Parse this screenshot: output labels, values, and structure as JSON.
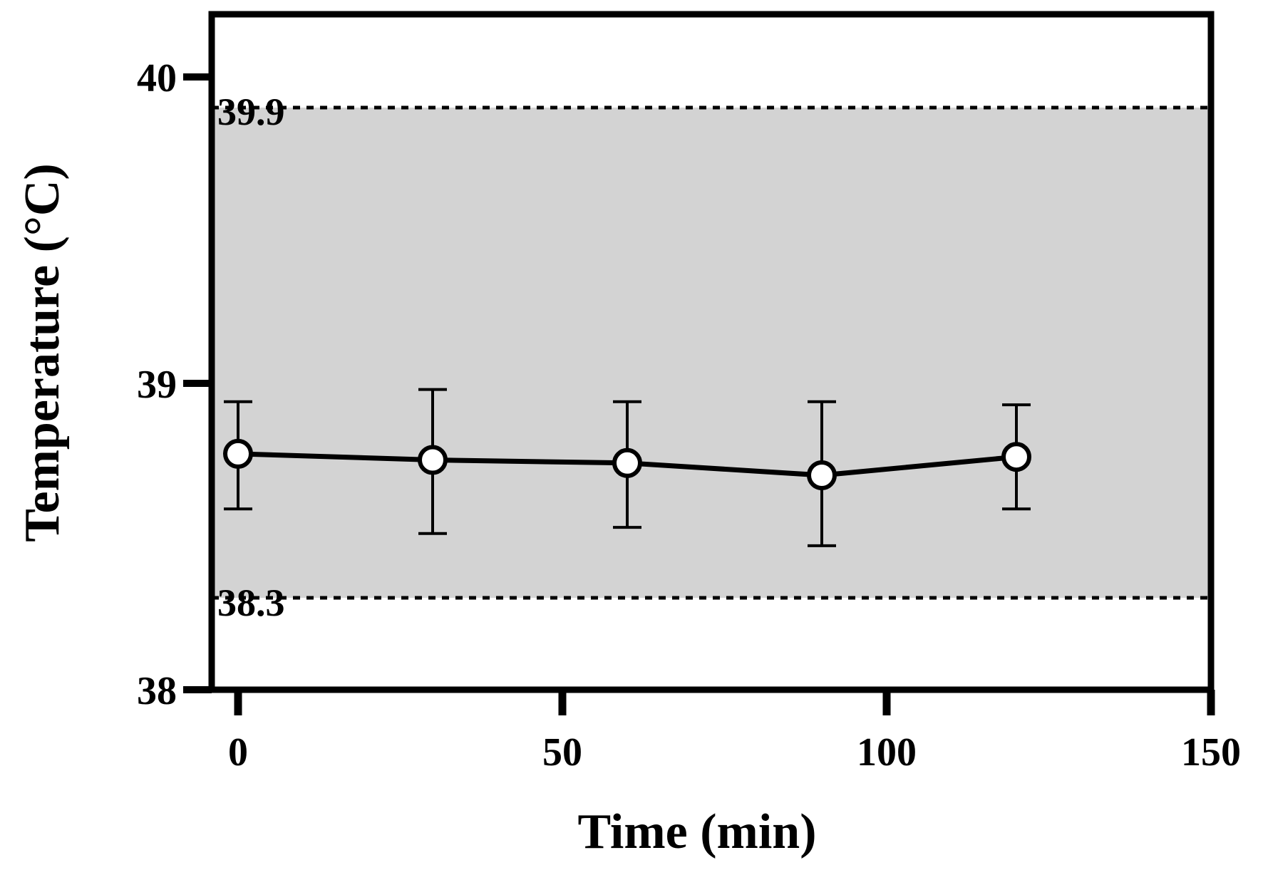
{
  "chart_data": {
    "type": "line",
    "title": "",
    "xlabel": "Time (min)",
    "ylabel": "Temperature (°C)",
    "xlim": [
      -8,
      150
    ],
    "ylim": [
      38,
      40.22
    ],
    "xticks": [
      0,
      50,
      100,
      150
    ],
    "xtick_labels": [
      "0",
      "50",
      "100",
      "150"
    ],
    "yticks": [
      38,
      39,
      40
    ],
    "ytick_labels": [
      "38",
      "39",
      "40"
    ],
    "grid": false,
    "legend": "none",
    "series": [
      {
        "x": [
          0,
          30,
          60,
          90,
          120
        ],
        "y": [
          38.77,
          38.75,
          38.74,
          38.7,
          38.76
        ],
        "error_low": [
          38.59,
          38.51,
          38.53,
          38.47,
          38.59
        ],
        "error_high": [
          38.94,
          38.98,
          38.94,
          38.94,
          38.93
        ],
        "marker": "open-circle",
        "color": "#000000"
      }
    ],
    "reference_band": {
      "low": 38.3,
      "high": 39.9,
      "low_label": "38.3",
      "high_label": "39.9",
      "fill": "#d3d3d3",
      "line_style": "dotted"
    }
  }
}
